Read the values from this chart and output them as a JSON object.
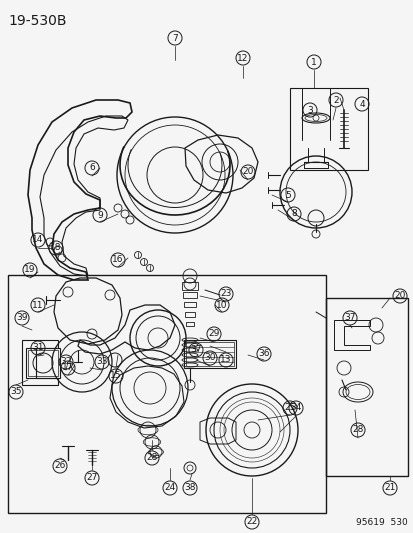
{
  "title": "19-530B",
  "footer": "95619  530",
  "bg_color": "#f5f5f5",
  "line_color": "#1a1a1a",
  "fig_width": 4.14,
  "fig_height": 5.33,
  "dpi": 100,
  "title_fontsize": 10,
  "label_fontsize": 6.5,
  "footer_fontsize": 6.5
}
